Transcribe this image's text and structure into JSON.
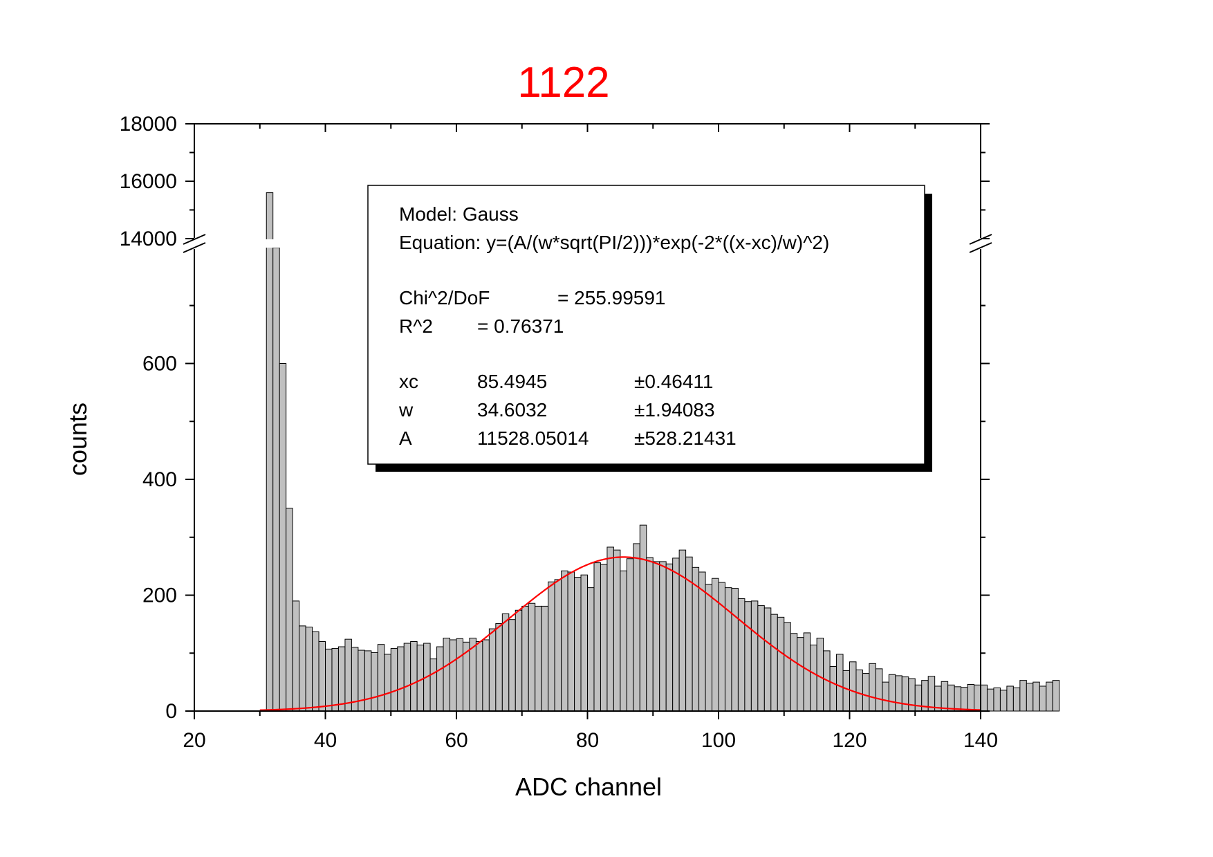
{
  "chart_data": {
    "type": "bar",
    "title": "1122",
    "xlabel": "ADC channel",
    "ylabel": "counts",
    "xlim": [
      20,
      140
    ],
    "x_ticks": [
      20,
      40,
      60,
      80,
      100,
      120,
      140
    ],
    "y_ticks_lower": [
      0,
      200,
      400,
      600
    ],
    "y_ticks_upper": [
      14000,
      16000,
      18000
    ],
    "ylim_lower": [
      0,
      800
    ],
    "ylim_upper": [
      14000,
      18000
    ],
    "axis_break": true,
    "bin_width": 1,
    "series": [
      {
        "kind": "histogram",
        "x_start": 30,
        "values": [
          0,
          15600,
          800,
          600,
          350,
          190,
          147,
          145,
          137,
          120,
          107,
          108,
          111,
          124,
          110,
          105,
          104,
          101,
          115,
          98,
          108,
          111,
          117,
          120,
          114,
          117,
          90,
          111,
          126,
          123,
          125,
          119,
          126,
          120,
          123,
          142,
          151,
          168,
          158,
          174,
          181,
          186,
          181,
          181,
          223,
          227,
          242,
          240,
          231,
          235,
          213,
          256,
          253,
          283,
          278,
          242,
          263,
          289,
          321,
          265,
          258,
          258,
          254,
          264,
          278,
          266,
          248,
          240,
          219,
          229,
          222,
          213,
          212,
          194,
          189,
          190,
          182,
          178,
          167,
          162,
          153,
          134,
          127,
          135,
          114,
          126,
          104,
          77,
          98,
          70,
          85,
          71,
          65,
          82,
          73,
          50,
          63,
          61,
          59,
          56,
          45,
          53,
          60,
          43,
          51,
          45,
          42,
          41,
          46,
          45,
          45,
          38,
          40,
          36,
          43,
          40,
          53,
          48,
          50,
          43,
          50,
          53
        ]
      },
      {
        "kind": "fit",
        "name": "Gauss",
        "color": "#ff0000",
        "params": {
          "xc": 85.4945,
          "w": 34.6032,
          "A": 11528.05014
        }
      }
    ],
    "colors": {
      "bar_fill": "#c0c0c0",
      "bar_stroke": "#000000",
      "fit": "#ff0000",
      "title": "#ff0000"
    },
    "legend": {
      "placement": "top-right",
      "lines": [
        "Model: Gauss",
        "Equation: y=(A/(w*sqrt(PI/2)))*exp(-2*((x-xc)/w)^2)",
        "",
        "Chi^2/DoF        = 255.99591",
        "R^2      =  0.76371",
        "",
        "xc          85.4945           ±0.46411",
        "w           34.6032           ±1.94083",
        "A           11528.05014    ±528.21431"
      ],
      "model": "Model: Gauss",
      "equation": "Equation: y=(A/(w*sqrt(PI/2)))*exp(-2*((x-xc)/w)^2)",
      "chi2_label": "Chi^2/DoF",
      "chi2_value": "= 255.99591",
      "r2_label": "R^2",
      "r2_value": "=  0.76371",
      "params": [
        {
          "name": "xc",
          "value": "85.4945",
          "error": "±0.46411"
        },
        {
          "name": "w",
          "value": "34.6032",
          "error": "±1.94083"
        },
        {
          "name": "A",
          "value": "11528.05014",
          "error": "±528.21431"
        }
      ]
    }
  }
}
